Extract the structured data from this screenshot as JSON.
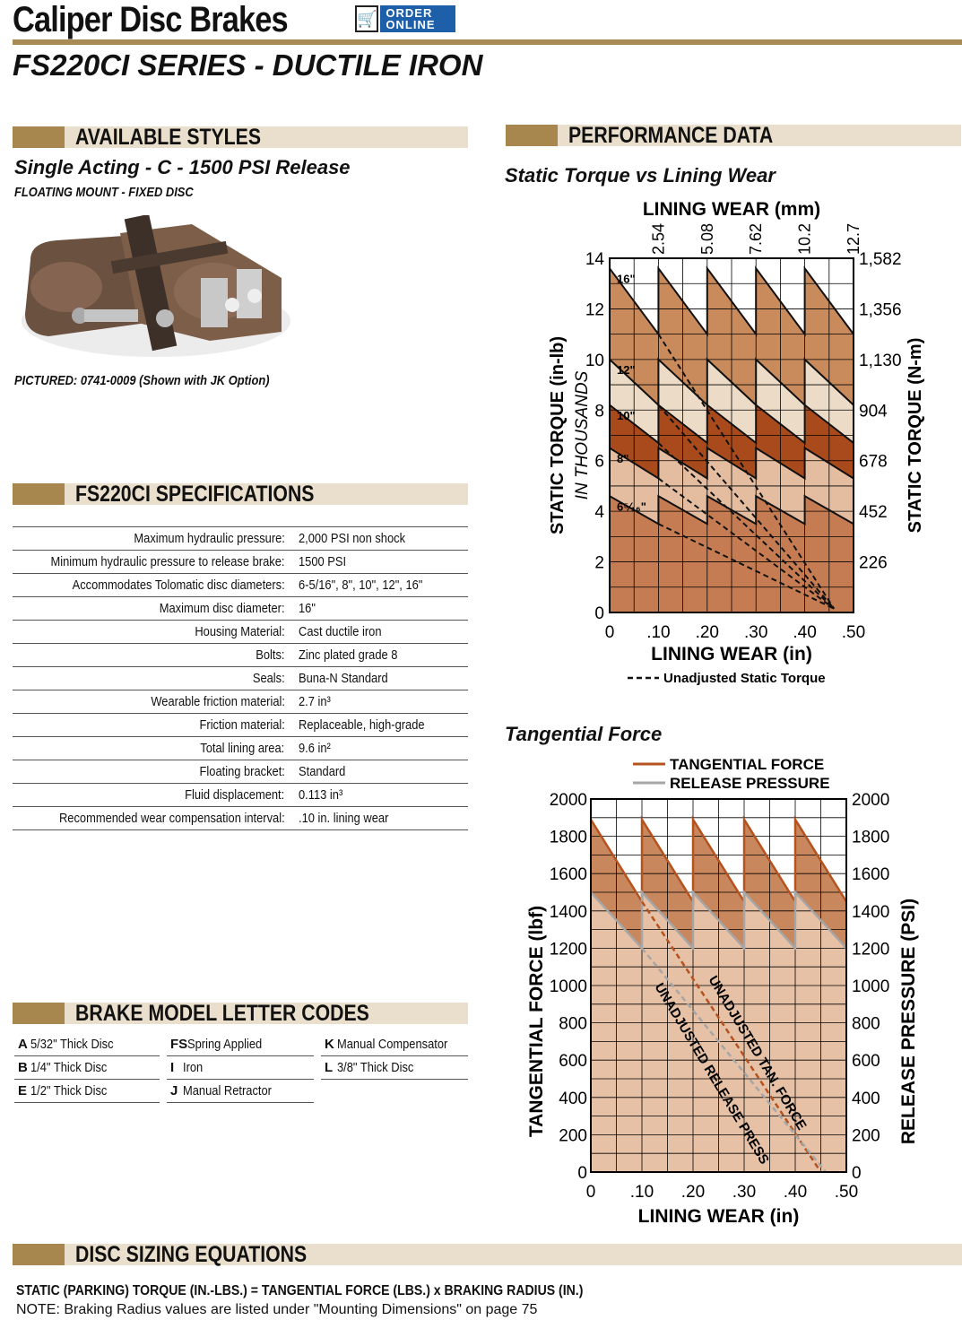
{
  "header": {
    "title": "Caliper Disc Brakes",
    "order_badge": "ORDER ONLINE",
    "subtitle": "FS220CI SERIES - DUCTILE IRON"
  },
  "styles": {
    "heading": "AVAILABLE STYLES",
    "style_name": "Single Acting -  C - 1500 PSI Release",
    "mount": "FLOATING MOUNT - FIXED DISC",
    "pictured": "PICTURED: 0741-0009 (Shown with JK Option)"
  },
  "specs": {
    "heading": "FS220CI SPECIFICATIONS",
    "rows": [
      {
        "k": "Maximum hydraulic pressure:",
        "v": "2,000 PSI non shock"
      },
      {
        "k": "Minimum hydraulic pressure to release brake:",
        "v": "1500 PSI"
      },
      {
        "k": "Accommodates Tolomatic disc diameters:",
        "v": "6-5/16\", 8\", 10\", 12\", 16\""
      },
      {
        "k": "Maximum disc diameter:",
        "v": "16\""
      },
      {
        "k": "Housing Material:",
        "v": "Cast ductile iron"
      },
      {
        "k": "Bolts:",
        "v": "Zinc plated grade 8"
      },
      {
        "k": "Seals:",
        "v": "Buna-N Standard"
      },
      {
        "k": "Wearable friction material:",
        "v": "2.7 in³"
      },
      {
        "k": "Friction material:",
        "v": "Replaceable, high-grade"
      },
      {
        "k": "Total lining area:",
        "v": "9.6 in²"
      },
      {
        "k": "Floating bracket:",
        "v": "Standard"
      },
      {
        "k": "Fluid displacement:",
        "v": "0.113 in³"
      },
      {
        "k": "Recommended wear compensation interval:",
        "v": ".10 in. lining wear"
      }
    ]
  },
  "codes": {
    "heading": "BRAKE MODEL LETTER CODES",
    "col1": [
      {
        "c": "A",
        "t": "5/32\" Thick Disc"
      },
      {
        "c": "B",
        "t": "1/4\" Thick Disc"
      },
      {
        "c": "E",
        "t": "1/2\" Thick Disc"
      }
    ],
    "col2": [
      {
        "c": "FS",
        "t": "Spring Applied"
      },
      {
        "c": "I",
        "t": "Iron"
      },
      {
        "c": "J",
        "t": "Manual Retractor"
      }
    ],
    "col3": [
      {
        "c": "K",
        "t": "Manual Compensator"
      },
      {
        "c": "L",
        "t": "3/8\" Thick Disc"
      }
    ]
  },
  "performance": {
    "heading": "PERFORMANCE DATA"
  },
  "equations": {
    "heading": "DISC SIZING EQUATIONS",
    "line1": "STATIC (PARKING) TORQUE (IN.-LBS.) = TANGENTIAL FORCE (LBS.) x BRAKING RADIUS (IN.)",
    "line2": "NOTE: Braking Radius values are listed under \"Mounting Dimensions\" on page 75"
  },
  "chart_data": [
    {
      "type": "line",
      "title": "Static Torque vs Lining Wear",
      "xlabel": "LINING WEAR (in)",
      "x2label": "LINING WEAR (mm)",
      "ylabel": "STATIC TORQUE (in-lb)",
      "ylabel_sub": "IN THOUSANDS",
      "y2label": "STATIC TORQUE (N-m)",
      "xlim": [
        0,
        0.5
      ],
      "ylim": [
        0,
        14
      ],
      "x_ticks": [
        "0",
        ".10",
        ".20",
        ".30",
        ".40",
        ".50"
      ],
      "x2_ticks": [
        "2.54",
        "5.08",
        "7.62",
        "10.2",
        "12.7"
      ],
      "y_ticks": [
        "0",
        "2",
        "4",
        "6",
        "8",
        "10",
        "12",
        "14"
      ],
      "y2_ticks": [
        "226",
        "452",
        "678",
        "904",
        "1,130",
        "1,356",
        "1,582"
      ],
      "legend": "Unadjusted Static Torque",
      "legend_position": "bottom",
      "grid": true,
      "series": [
        {
          "name": "16\"",
          "start": 13.6,
          "end": 11.0,
          "fill": "#c98a5c"
        },
        {
          "name": "12\"",
          "start": 10.0,
          "end": 8.2,
          "fill": "#ecdcc7"
        },
        {
          "name": "10\"",
          "start": 8.2,
          "end": 6.7,
          "fill": "#a84a1c"
        },
        {
          "name": "8\"",
          "start": 6.5,
          "end": 5.3,
          "fill": "#e4bca0"
        },
        {
          "name": "6⁵⁄₁₆\"",
          "start": 4.6,
          "end": 3.5,
          "fill": "#c67c52"
        }
      ],
      "unadjusted_end": [
        0.46,
        0.15
      ]
    },
    {
      "type": "line",
      "title": "Tangential Force",
      "xlabel": "LINING WEAR (in)",
      "ylabel": "TANGENTIAL FORCE (lbf)",
      "y2label": "RELEASE PRESSURE (PSI)",
      "xlim": [
        0,
        0.5
      ],
      "ylim": [
        0,
        2000
      ],
      "x_ticks": [
        "0",
        ".10",
        ".20",
        ".30",
        ".40",
        ".50"
      ],
      "y_ticks": [
        "0",
        "200",
        "400",
        "600",
        "800",
        "1000",
        "1200",
        "1400",
        "1600",
        "1800",
        "2000"
      ],
      "y2_ticks": [
        "0",
        "200",
        "400",
        "600",
        "800",
        "1000",
        "1200",
        "1400",
        "1600",
        "1800",
        "2000"
      ],
      "legend_position": "top",
      "grid": true,
      "series": [
        {
          "name": "TANGENTIAL FORCE",
          "color": "#b5531f",
          "start": 1890,
          "end": 1450
        },
        {
          "name": "RELEASE PRESSURE",
          "color": "#a6a6a6",
          "start": 1500,
          "end": 1200
        }
      ],
      "annotations": [
        "UNADJUSTED TAN. FORCE",
        "UNADJUSTED RELEASE PRESS"
      ]
    }
  ]
}
